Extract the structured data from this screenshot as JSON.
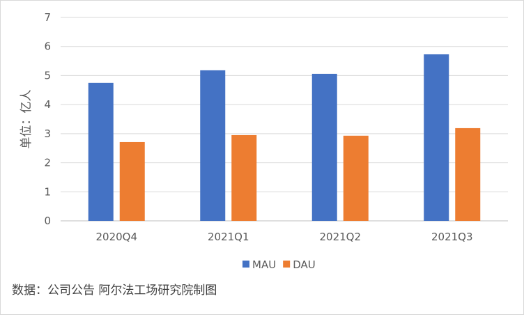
{
  "chart_data": {
    "type": "bar",
    "categories": [
      "2020Q4",
      "2021Q1",
      "2021Q2",
      "2021Q3"
    ],
    "series": [
      {
        "name": "MAU",
        "color": "#4472C4",
        "values": [
          4.75,
          5.18,
          5.06,
          5.73
        ]
      },
      {
        "name": "DAU",
        "color": "#ED7D31",
        "values": [
          2.71,
          2.95,
          2.93,
          3.19
        ]
      }
    ],
    "ylabel": "单位：亿人",
    "ylim": [
      0,
      7
    ],
    "yticks": [
      "0",
      "1",
      "2",
      "3",
      "4",
      "5",
      "6",
      "7"
    ],
    "grid": true,
    "legend_position": "bottom"
  },
  "source_note": "数据：公司公告 阿尔法工场研究院制图"
}
